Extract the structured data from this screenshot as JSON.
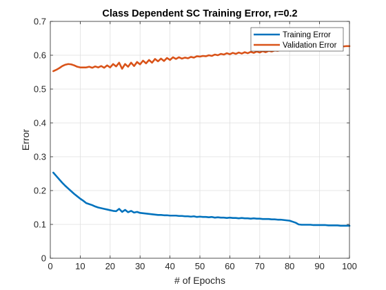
{
  "chart_data": {
    "type": "line",
    "title": "Class Dependent SC Training Error, r=0.2",
    "xlabel": "# of Epochs",
    "ylabel": "Error",
    "xlim": [
      0,
      100
    ],
    "ylim": [
      0,
      0.7
    ],
    "xticks": [
      0,
      10,
      20,
      30,
      40,
      50,
      60,
      70,
      80,
      90,
      100
    ],
    "yticks": [
      0,
      0.1,
      0.2,
      0.3,
      0.4,
      0.5,
      0.6,
      0.7
    ],
    "grid": true,
    "legend": "top-right",
    "series": [
      {
        "name": "Training Error",
        "color": "#0072BD",
        "x": [
          1,
          2,
          3,
          4,
          5,
          6,
          7,
          8,
          9,
          10,
          11,
          12,
          13,
          14,
          15,
          16,
          17,
          18,
          19,
          20,
          21,
          22,
          23,
          24,
          25,
          26,
          27,
          28,
          29,
          30,
          31,
          32,
          33,
          34,
          35,
          36,
          37,
          38,
          39,
          40,
          41,
          42,
          43,
          44,
          45,
          46,
          47,
          48,
          49,
          50,
          51,
          52,
          53,
          54,
          55,
          56,
          57,
          58,
          59,
          60,
          61,
          62,
          63,
          64,
          65,
          66,
          67,
          68,
          69,
          70,
          71,
          72,
          73,
          74,
          75,
          76,
          77,
          78,
          79,
          80,
          81,
          82,
          83,
          84,
          85,
          86,
          87,
          88,
          89,
          90,
          91,
          92,
          93,
          94,
          95,
          96,
          97,
          98,
          99,
          100
        ],
        "y": [
          0.253,
          0.243,
          0.233,
          0.223,
          0.214,
          0.206,
          0.198,
          0.19,
          0.183,
          0.176,
          0.17,
          0.163,
          0.16,
          0.157,
          0.153,
          0.15,
          0.148,
          0.146,
          0.144,
          0.142,
          0.14,
          0.139,
          0.146,
          0.137,
          0.143,
          0.136,
          0.14,
          0.135,
          0.137,
          0.134,
          0.133,
          0.132,
          0.131,
          0.13,
          0.129,
          0.128,
          0.128,
          0.127,
          0.127,
          0.126,
          0.126,
          0.126,
          0.125,
          0.125,
          0.124,
          0.124,
          0.123,
          0.124,
          0.122,
          0.123,
          0.122,
          0.122,
          0.121,
          0.122,
          0.12,
          0.121,
          0.12,
          0.12,
          0.119,
          0.12,
          0.119,
          0.119,
          0.118,
          0.119,
          0.118,
          0.118,
          0.117,
          0.118,
          0.117,
          0.117,
          0.116,
          0.116,
          0.116,
          0.115,
          0.115,
          0.114,
          0.114,
          0.113,
          0.112,
          0.111,
          0.108,
          0.105,
          0.1,
          0.099,
          0.099,
          0.099,
          0.099,
          0.098,
          0.098,
          0.098,
          0.098,
          0.098,
          0.097,
          0.097,
          0.097,
          0.097,
          0.096,
          0.096,
          0.096,
          0.096
        ]
      },
      {
        "name": "Validation Error",
        "color": "#D95319",
        "x": [
          1,
          2,
          3,
          4,
          5,
          6,
          7,
          8,
          9,
          10,
          11,
          12,
          13,
          14,
          15,
          16,
          17,
          18,
          19,
          20,
          21,
          22,
          23,
          24,
          25,
          26,
          27,
          28,
          29,
          30,
          31,
          32,
          33,
          34,
          35,
          36,
          37,
          38,
          39,
          40,
          41,
          42,
          43,
          44,
          45,
          46,
          47,
          48,
          49,
          50,
          51,
          52,
          53,
          54,
          55,
          56,
          57,
          58,
          59,
          60,
          61,
          62,
          63,
          64,
          65,
          66,
          67,
          68,
          69,
          70,
          71,
          72,
          73,
          74,
          75,
          76,
          77,
          78,
          79,
          80,
          81,
          82,
          83,
          84,
          85,
          86,
          87,
          88,
          89,
          90,
          91,
          92,
          93,
          94,
          95,
          96,
          97,
          98,
          99,
          100
        ],
        "y": [
          0.553,
          0.557,
          0.562,
          0.568,
          0.572,
          0.574,
          0.573,
          0.57,
          0.566,
          0.564,
          0.564,
          0.564,
          0.566,
          0.563,
          0.567,
          0.564,
          0.568,
          0.563,
          0.57,
          0.564,
          0.574,
          0.567,
          0.578,
          0.56,
          0.574,
          0.566,
          0.578,
          0.568,
          0.58,
          0.573,
          0.584,
          0.576,
          0.586,
          0.578,
          0.589,
          0.582,
          0.59,
          0.583,
          0.592,
          0.586,
          0.594,
          0.589,
          0.594,
          0.59,
          0.593,
          0.591,
          0.595,
          0.593,
          0.597,
          0.596,
          0.598,
          0.597,
          0.6,
          0.598,
          0.602,
          0.6,
          0.604,
          0.602,
          0.606,
          0.603,
          0.607,
          0.604,
          0.608,
          0.605,
          0.609,
          0.606,
          0.61,
          0.607,
          0.611,
          0.608,
          0.612,
          0.609,
          0.613,
          0.611,
          0.614,
          0.613,
          0.616,
          0.615,
          0.617,
          0.617,
          0.618,
          0.619,
          0.62,
          0.62,
          0.621,
          0.621,
          0.622,
          0.622,
          0.623,
          0.623,
          0.624,
          0.624,
          0.625,
          0.625,
          0.625,
          0.626,
          0.626,
          0.626,
          0.627,
          0.627
        ]
      }
    ]
  }
}
